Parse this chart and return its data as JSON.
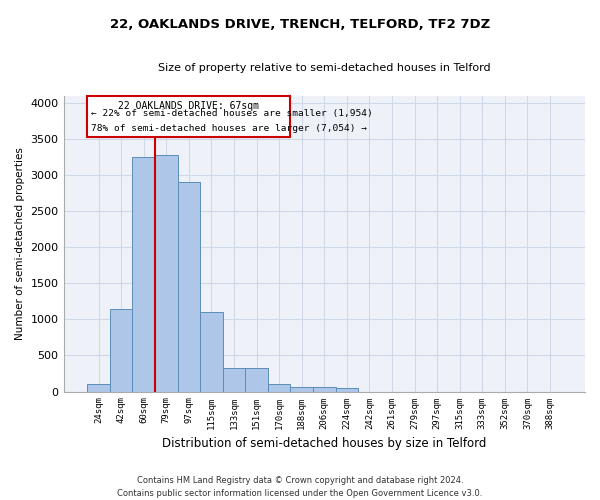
{
  "title": "22, OAKLANDS DRIVE, TRENCH, TELFORD, TF2 7DZ",
  "subtitle": "Size of property relative to semi-detached houses in Telford",
  "xlabel": "Distribution of semi-detached houses by size in Telford",
  "ylabel": "Number of semi-detached properties",
  "footer_line1": "Contains HM Land Registry data © Crown copyright and database right 2024.",
  "footer_line2": "Contains public sector information licensed under the Open Government Licence v3.0.",
  "bar_labels": [
    "24sqm",
    "42sqm",
    "60sqm",
    "79sqm",
    "97sqm",
    "115sqm",
    "133sqm",
    "151sqm",
    "170sqm",
    "188sqm",
    "206sqm",
    "224sqm",
    "242sqm",
    "261sqm",
    "279sqm",
    "297sqm",
    "315sqm",
    "333sqm",
    "352sqm",
    "370sqm",
    "388sqm"
  ],
  "bar_values": [
    100,
    1150,
    3250,
    3280,
    2900,
    1100,
    320,
    320,
    100,
    60,
    60,
    50,
    0,
    0,
    0,
    0,
    0,
    0,
    0,
    0,
    0
  ],
  "bar_color": "#aec6e8",
  "bar_edge_color": "#5b8db8",
  "ylim": [
    0,
    4100
  ],
  "yticks": [
    0,
    500,
    1000,
    1500,
    2000,
    2500,
    3000,
    3500,
    4000
  ],
  "property_size": 67,
  "property_label": "22 OAKLANDS DRIVE: 67sqm",
  "pct_smaller": 22,
  "pct_larger": 78,
  "count_smaller": "1,954",
  "count_larger": "7,054",
  "vline_color": "#cc0000",
  "annotation_box_color": "#cc0000",
  "grid_color": "#d0d8e8",
  "background_color": "#eef2f8",
  "fig_width": 6.0,
  "fig_height": 5.0,
  "dpi": 100
}
